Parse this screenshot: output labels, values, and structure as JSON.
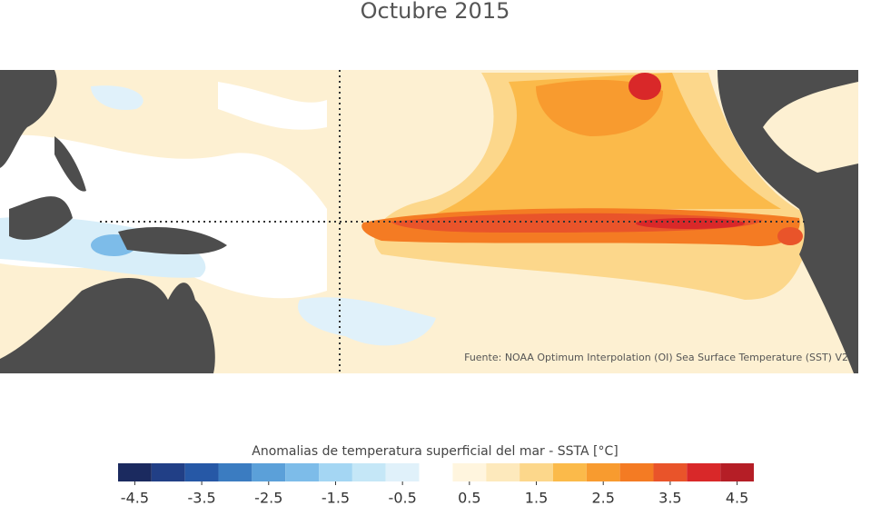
{
  "title": "Octubre 2015",
  "source": "Fuente: NOAA Optimum Interpolation (OI) Sea Surface Temperature (SST) V2",
  "colorbar": {
    "label": "Anomalias de temperatura superficial del mar - SSTA  [°C]",
    "lim": [
      -4.75,
      4.75
    ],
    "bins": [
      -4.75,
      -4.25,
      -3.75,
      -3.25,
      -2.75,
      -2.25,
      -1.75,
      -1.25,
      -0.75,
      -0.25,
      0.25,
      0.75,
      1.25,
      1.75,
      2.25,
      2.75,
      3.25,
      3.75,
      4.25,
      4.75
    ],
    "colors": [
      "#1b2a5f",
      "#213f86",
      "#2658a6",
      "#3b7cc1",
      "#5ba0d9",
      "#7dbce9",
      "#a4d6f3",
      "#c5e7f7",
      "#e0f1fa",
      "#ffffff",
      "#fff5de",
      "#fde9bc",
      "#fcd78b",
      "#fbba4a",
      "#f89b2f",
      "#f47b23",
      "#e9542a",
      "#d92829",
      "#b51e26"
    ],
    "ticks": [
      -4.5,
      -3.5,
      -2.5,
      -1.5,
      -0.5,
      0.5,
      1.5,
      2.5,
      3.5,
      4.5
    ]
  }
}
